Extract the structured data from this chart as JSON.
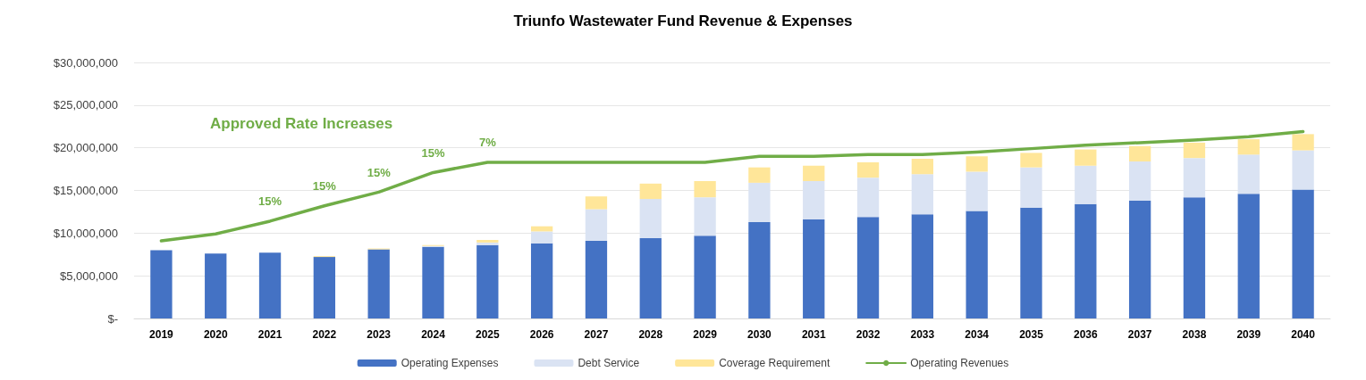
{
  "chart_data": {
    "type": "bar",
    "title": "Triunfo Wastewater Fund Revenue & Expenses",
    "categories": [
      "2019",
      "2020",
      "2021",
      "2022",
      "2023",
      "2024",
      "2025",
      "2026",
      "2027",
      "2028",
      "2029",
      "2030",
      "2031",
      "2032",
      "2033",
      "2034",
      "2035",
      "2036",
      "2037",
      "2038",
      "2039",
      "2040"
    ],
    "stacked": true,
    "series": [
      {
        "name": "Operating Expenses",
        "color": "#4472c4",
        "values": [
          8000000,
          7600000,
          7700000,
          7200000,
          8100000,
          8400000,
          8600000,
          8800000,
          9100000,
          9400000,
          9700000,
          11300000,
          11600000,
          11900000,
          12200000,
          12600000,
          13000000,
          13400000,
          13800000,
          14200000,
          14600000,
          15100000
        ]
      },
      {
        "name": "Debt Service",
        "color": "#dae3f3",
        "values": [
          0,
          0,
          0,
          0,
          0,
          100000,
          300000,
          1400000,
          3700000,
          4600000,
          4500000,
          4600000,
          4500000,
          4600000,
          4700000,
          4600000,
          4700000,
          4500000,
          4600000,
          4600000,
          4600000,
          4600000
        ]
      },
      {
        "name": "Coverage Requirement",
        "color": "#ffe699",
        "values": [
          0,
          0,
          0,
          100000,
          100000,
          100000,
          300000,
          600000,
          1500000,
          1800000,
          1900000,
          1800000,
          1800000,
          1800000,
          1800000,
          1800000,
          1700000,
          1900000,
          1800000,
          1800000,
          1800000,
          1900000
        ]
      },
      {
        "name": "Operating Revenues",
        "type": "line",
        "color": "#70ad47",
        "values": [
          9100000,
          9900000,
          11400000,
          13200000,
          14800000,
          17100000,
          18300000,
          18300000,
          18300000,
          18300000,
          18300000,
          19000000,
          19000000,
          19200000,
          19200000,
          19500000,
          19900000,
          20300000,
          20600000,
          20900000,
          21300000,
          21900000
        ]
      }
    ],
    "ylim": [
      0,
      30000000
    ],
    "yticks": [
      {
        "value": 0,
        "label": "$-"
      },
      {
        "value": 5000000,
        "label": "$5,000,000"
      },
      {
        "value": 10000000,
        "label": "$10,000,000"
      },
      {
        "value": 15000000,
        "label": "$15,000,000"
      },
      {
        "value": 20000000,
        "label": "$20,000,000"
      },
      {
        "value": 25000000,
        "label": "$25,000,000"
      },
      {
        "value": 30000000,
        "label": "$30,000,000"
      }
    ],
    "grid": "y",
    "legend": "bottom",
    "marker": "none",
    "annotations": [
      "Approved Rate Increases",
      {
        "text": "15%",
        "x": "2021",
        "y": 11400000
      },
      {
        "text": "15%",
        "x": "2022",
        "y": 13200000
      },
      {
        "text": "15%",
        "x": "2023",
        "y": 14800000
      },
      {
        "text": "15%",
        "x": "2024",
        "y": 17100000
      },
      {
        "text": "7%",
        "x": "2025",
        "y": 18300000
      }
    ]
  }
}
